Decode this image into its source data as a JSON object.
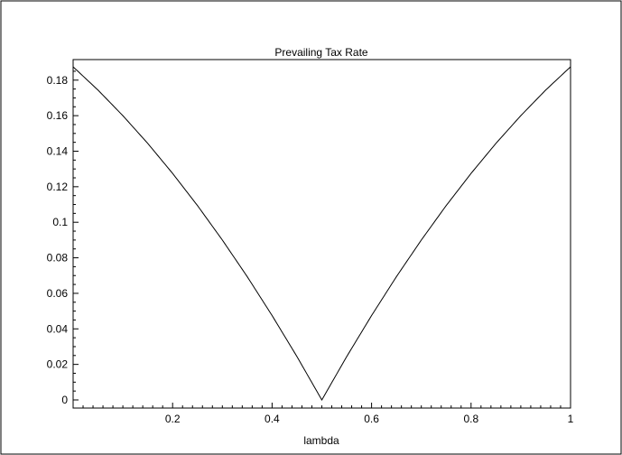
{
  "chart_data": {
    "type": "line",
    "title": "Prevailing Tax Rate",
    "xlabel": "lambda",
    "ylabel": "",
    "xlim": [
      0,
      1
    ],
    "ylim": [
      0,
      0.19
    ],
    "x_ticks": [
      0.2,
      0.4,
      0.6,
      0.8,
      1
    ],
    "x_tick_labels": [
      "0.2",
      "0.4",
      "0.6",
      "0.8",
      "1"
    ],
    "y_ticks": [
      0,
      0.02,
      0.04,
      0.06,
      0.08,
      0.1,
      0.12,
      0.14,
      0.16,
      0.18
    ],
    "y_tick_labels": [
      "0",
      "0.02",
      "0.04",
      "0.06",
      "0.08",
      "0.1",
      "0.12",
      "0.14",
      "0.16",
      "0.18"
    ],
    "grid": false,
    "series": [
      {
        "color": "#000000",
        "x": [
          0,
          0.05,
          0.1,
          0.15,
          0.2,
          0.25,
          0.3,
          0.35,
          0.4,
          0.45,
          0.5,
          0.55,
          0.6,
          0.65,
          0.7,
          0.75,
          0.8,
          0.85,
          0.9,
          0.95,
          1
        ],
        "y": [
          0.1875,
          0.1744,
          0.16,
          0.1444,
          0.1275,
          0.1094,
          0.09,
          0.0694,
          0.0475,
          0.0244,
          0.0,
          0.0244,
          0.0475,
          0.0694,
          0.09,
          0.1094,
          0.1275,
          0.1444,
          0.16,
          0.1744,
          0.1875
        ]
      }
    ]
  }
}
